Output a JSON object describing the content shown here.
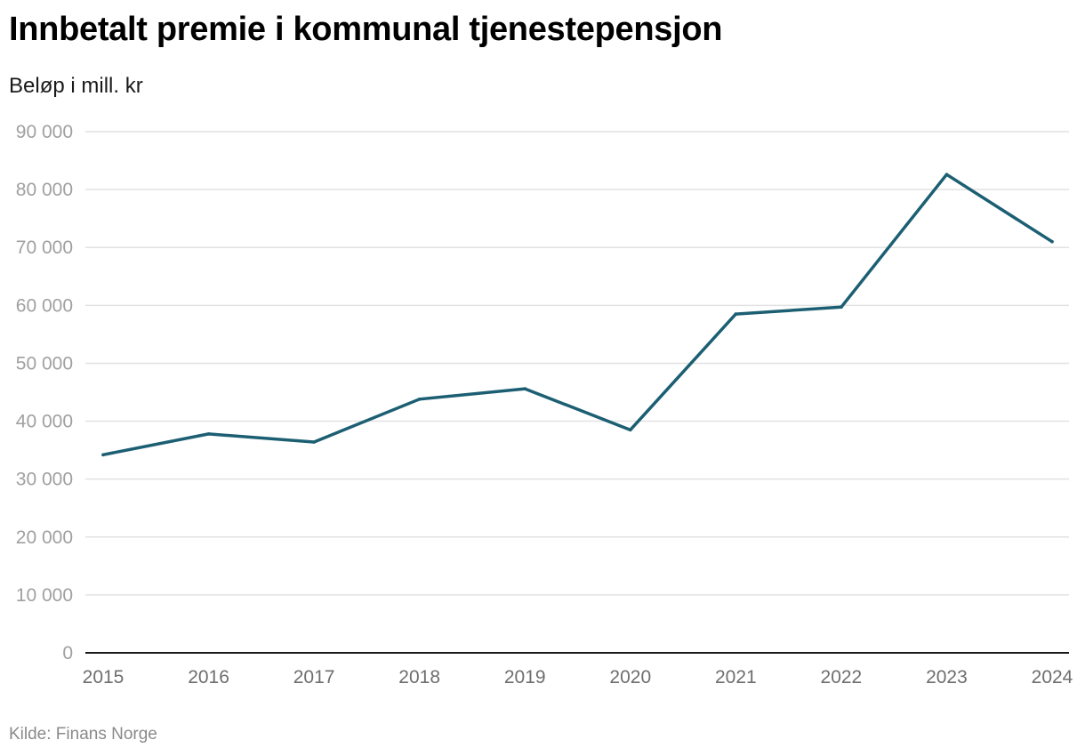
{
  "chart_data": {
    "type": "line",
    "title": "Innbetalt premie i kommunal tjenestepensjon",
    "subtitle": "Beløp i mill. kr",
    "source": "Kilde: Finans Norge",
    "xlabel": "",
    "ylabel": "",
    "x": [
      "2015",
      "2016",
      "2017",
      "2018",
      "2019",
      "2020",
      "2021",
      "2022",
      "2023",
      "2024"
    ],
    "series": [
      {
        "name": "Innbetalt premie",
        "values": [
          34200,
          37800,
          36400,
          43800,
          45600,
          38500,
          58500,
          59700,
          82600,
          71000
        ]
      }
    ],
    "ylim": [
      0,
      90000
    ],
    "yticks": [
      0,
      10000,
      20000,
      30000,
      40000,
      50000,
      60000,
      70000,
      80000,
      90000
    ],
    "ytick_labels": [
      "0",
      "10 000",
      "20 000",
      "30 000",
      "40 000",
      "50 000",
      "60 000",
      "70 000",
      "80 000",
      "90 000"
    ],
    "grid": true,
    "line_color": "#1c5f73"
  }
}
